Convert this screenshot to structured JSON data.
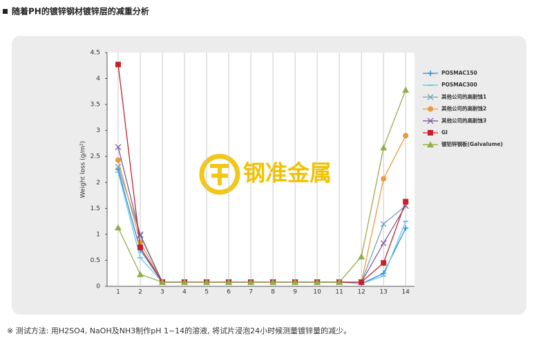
{
  "heading": "随着PH的镀锌钢材镀锌层的减重分析",
  "footnote": "※ 测试方法: 用H2SO4, NaOH及NH3制作pH 1~14的溶液, 将试片浸泡24小时候测量镀锌量的减少。",
  "watermark": "钢准金属",
  "chart_data": {
    "type": "line",
    "y_label": "Weight loss (g/m²)",
    "x": [
      1,
      2,
      3,
      4,
      5,
      6,
      7,
      8,
      9,
      10,
      11,
      12,
      13,
      14
    ],
    "xlim": [
      0.5,
      14.4
    ],
    "xticks": [
      1,
      2,
      3,
      4,
      5,
      6,
      7,
      8,
      9,
      10,
      11,
      12,
      13,
      14
    ],
    "ylim": [
      0,
      4.5
    ],
    "yticks": [
      0,
      0.5,
      1,
      1.5,
      2,
      2.5,
      3,
      3.5,
      4,
      4.5
    ],
    "grid": "x",
    "series": [
      {
        "name": "POSMAC150",
        "color": "#1f8fd6",
        "marker": "plus",
        "values": [
          2.25,
          0.7,
          0.08,
          0.08,
          0.08,
          0.08,
          0.08,
          0.08,
          0.08,
          0.08,
          0.08,
          0.05,
          0.25,
          1.12
        ]
      },
      {
        "name": "POSMAC300",
        "color": "#6cc3ec",
        "marker": "dash",
        "values": [
          2.2,
          0.55,
          0.08,
          0.08,
          0.08,
          0.08,
          0.08,
          0.08,
          0.08,
          0.08,
          0.08,
          0.05,
          0.2,
          1.25
        ]
      },
      {
        "name": "其他公司的高耐蚀1",
        "color": "#6fa3b8",
        "marker": "x",
        "values": [
          2.3,
          1.0,
          0.08,
          0.08,
          0.08,
          0.08,
          0.08,
          0.08,
          0.08,
          0.08,
          0.08,
          0.08,
          1.2,
          1.55
        ]
      },
      {
        "name": "其他公司的高耐蚀2",
        "color": "#e89a3c",
        "marker": "circle",
        "values": [
          2.43,
          0.85,
          0.08,
          0.08,
          0.08,
          0.08,
          0.08,
          0.08,
          0.08,
          0.08,
          0.08,
          0.08,
          2.07,
          2.9
        ]
      },
      {
        "name": "其他公司的高耐蚀3",
        "color": "#7a5c9c",
        "marker": "x",
        "values": [
          2.68,
          0.98,
          0.08,
          0.08,
          0.08,
          0.08,
          0.08,
          0.08,
          0.08,
          0.08,
          0.08,
          0.08,
          0.83,
          1.55
        ]
      },
      {
        "name": "GI",
        "color": "#c8202a",
        "marker": "square",
        "values": [
          4.27,
          0.75,
          0.08,
          0.08,
          0.08,
          0.08,
          0.08,
          0.08,
          0.08,
          0.08,
          0.08,
          0.08,
          0.45,
          1.63
        ]
      },
      {
        "name": "镀铝锌钢板(Galvalume)",
        "color": "#93ad4a",
        "marker": "triangle",
        "values": [
          1.13,
          0.23,
          0.08,
          0.08,
          0.08,
          0.08,
          0.08,
          0.08,
          0.08,
          0.08,
          0.08,
          0.57,
          2.67,
          3.78
        ]
      }
    ]
  }
}
